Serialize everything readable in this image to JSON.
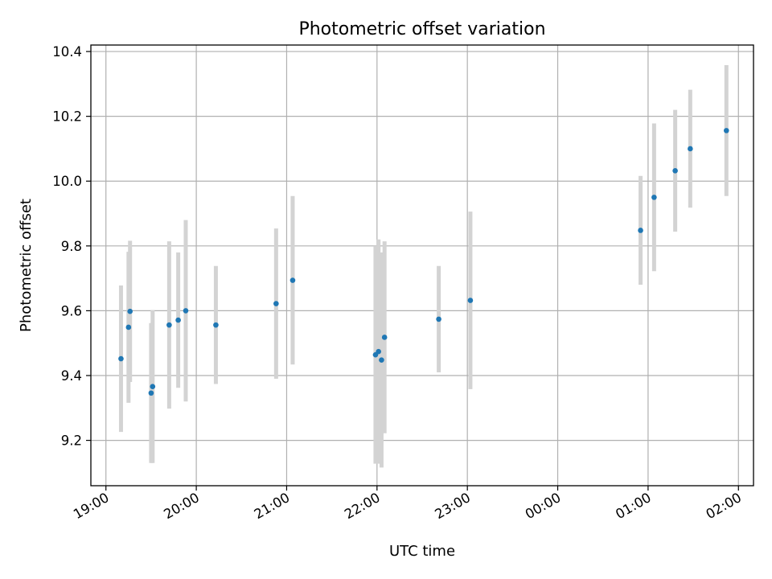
{
  "chart_data": {
    "type": "scatter",
    "title": "Photometric offset variation",
    "xlabel": "UTC time",
    "ylabel": "Photometric offset",
    "x_axis": "time",
    "xlim": [
      "18:50",
      "26:10"
    ],
    "ylim": [
      9.06,
      10.42
    ],
    "x_ticks": [
      {
        "label": "19:00",
        "value": "19:00"
      },
      {
        "label": "20:00",
        "value": "20:00"
      },
      {
        "label": "21:00",
        "value": "21:00"
      },
      {
        "label": "22:00",
        "value": "22:00"
      },
      {
        "label": "23:00",
        "value": "23:00"
      },
      {
        "label": "00:00",
        "value": "24:00"
      },
      {
        "label": "01:00",
        "value": "25:00"
      },
      {
        "label": "02:00",
        "value": "26:00"
      }
    ],
    "y_ticks": [
      9.2,
      9.4,
      9.6,
      9.8,
      10.0,
      10.2,
      10.4
    ],
    "y_tick_labels": [
      "9.2",
      "9.4",
      "9.6",
      "9.8",
      "10.0",
      "10.2",
      "10.4"
    ],
    "grid": true,
    "point_color": "#1f77b4",
    "errorbar_color": "#d3d3d3",
    "points": [
      {
        "time": "19:10",
        "y": 9.452,
        "ylow": 9.226,
        "yhigh": 9.678
      },
      {
        "time": "19:15",
        "y": 9.549,
        "ylow": 9.316,
        "yhigh": 9.782
      },
      {
        "time": "19:16",
        "y": 9.598,
        "ylow": 9.38,
        "yhigh": 9.816
      },
      {
        "time": "19:30",
        "y": 9.346,
        "ylow": 9.13,
        "yhigh": 9.562
      },
      {
        "time": "19:31",
        "y": 9.366,
        "ylow": 9.13,
        "yhigh": 9.602
      },
      {
        "time": "19:42",
        "y": 9.556,
        "ylow": 9.298,
        "yhigh": 9.814
      },
      {
        "time": "19:48",
        "y": 9.571,
        "ylow": 9.362,
        "yhigh": 9.78
      },
      {
        "time": "19:53",
        "y": 9.6,
        "ylow": 9.32,
        "yhigh": 9.88
      },
      {
        "time": "20:13",
        "y": 9.556,
        "ylow": 9.374,
        "yhigh": 9.738
      },
      {
        "time": "20:53",
        "y": 9.622,
        "ylow": 9.39,
        "yhigh": 9.854
      },
      {
        "time": "21:04",
        "y": 9.694,
        "ylow": 9.434,
        "yhigh": 9.954
      },
      {
        "time": "21:59",
        "y": 9.464,
        "ylow": 9.128,
        "yhigh": 9.8
      },
      {
        "time": "22:01",
        "y": 9.474,
        "ylow": 9.128,
        "yhigh": 9.82
      },
      {
        "time": "22:03",
        "y": 9.448,
        "ylow": 9.116,
        "yhigh": 9.78
      },
      {
        "time": "22:05",
        "y": 9.518,
        "ylow": 9.222,
        "yhigh": 9.814
      },
      {
        "time": "22:41",
        "y": 9.574,
        "ylow": 9.41,
        "yhigh": 9.738
      },
      {
        "time": "23:02",
        "y": 9.632,
        "ylow": 9.358,
        "yhigh": 9.906
      },
      {
        "time": "24:55",
        "y": 9.848,
        "ylow": 9.68,
        "yhigh": 10.016
      },
      {
        "time": "25:04",
        "y": 9.95,
        "ylow": 9.722,
        "yhigh": 10.178
      },
      {
        "time": "25:18",
        "y": 10.032,
        "ylow": 9.844,
        "yhigh": 10.22
      },
      {
        "time": "25:28",
        "y": 10.1,
        "ylow": 9.918,
        "yhigh": 10.282
      },
      {
        "time": "25:52",
        "y": 10.156,
        "ylow": 9.954,
        "yhigh": 10.358
      }
    ]
  }
}
